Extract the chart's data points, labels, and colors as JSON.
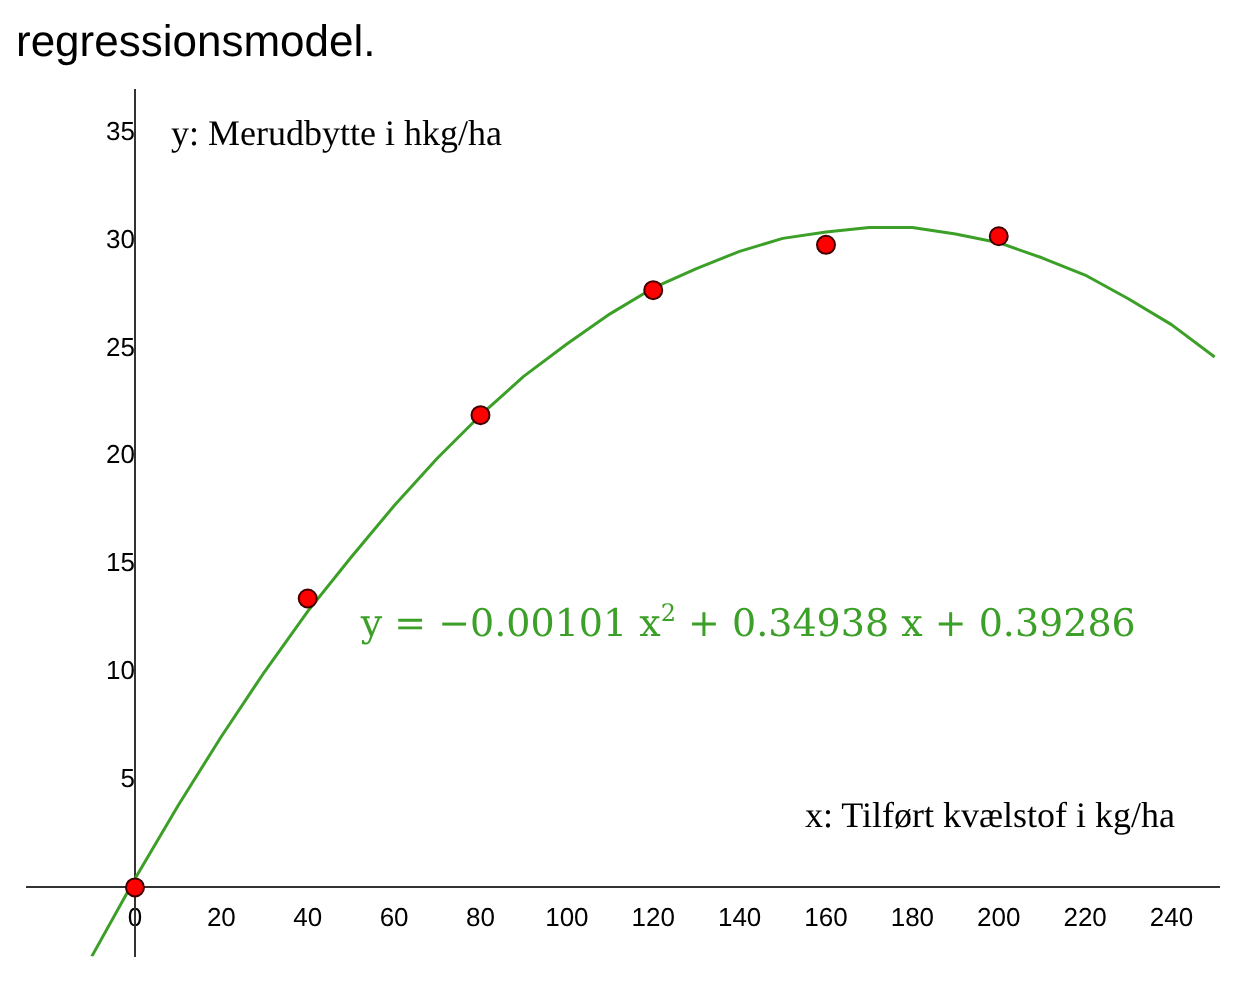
{
  "chart_data": {
    "type": "scatter",
    "title": "regressionsmodel.",
    "xlabel": "x: Tilført kvælstof i kg/ha",
    "ylabel": "y: Merudbytte i hkg/ha",
    "annotations": [
      "y = −0.00101 x$^{2}$ + 0.34938 x + 0.39286"
    ],
    "xlim": [
      -25,
      251
    ],
    "ylim": [
      -3.2,
      37
    ],
    "xticks": [
      0,
      20,
      40,
      60,
      80,
      100,
      120,
      140,
      160,
      180,
      200,
      220,
      240
    ],
    "yticks": [
      5,
      10,
      15,
      20,
      25,
      30,
      35
    ],
    "grid": false,
    "legend": false,
    "series": [
      {
        "color": "#ff0000",
        "marker": "circle",
        "x": [
          0,
          40,
          80,
          120,
          160,
          200
        ],
        "values": [
          0,
          13.4,
          21.9,
          27.7,
          29.8,
          30.2
        ]
      },
      {
        "type": "line",
        "color": "#3ca028",
        "marker": "none",
        "line_style": "solid",
        "x": [
          -10,
          0,
          10,
          20,
          30,
          40,
          50,
          60,
          70,
          80,
          90,
          100,
          110,
          120,
          130,
          140,
          150,
          160,
          170,
          180,
          190,
          200,
          210,
          220,
          230,
          240,
          250
        ],
        "values": [
          -3.2,
          0.4,
          3.8,
          7,
          10,
          12.8,
          15.3,
          17.7,
          19.9,
          21.9,
          23.7,
          25.2,
          26.6,
          27.8,
          28.7,
          29.5,
          30.1,
          30.4,
          30.6,
          30.6,
          30.3,
          29.9,
          29.2,
          28.4,
          27.3,
          26.1,
          24.6
        ]
      }
    ]
  }
}
